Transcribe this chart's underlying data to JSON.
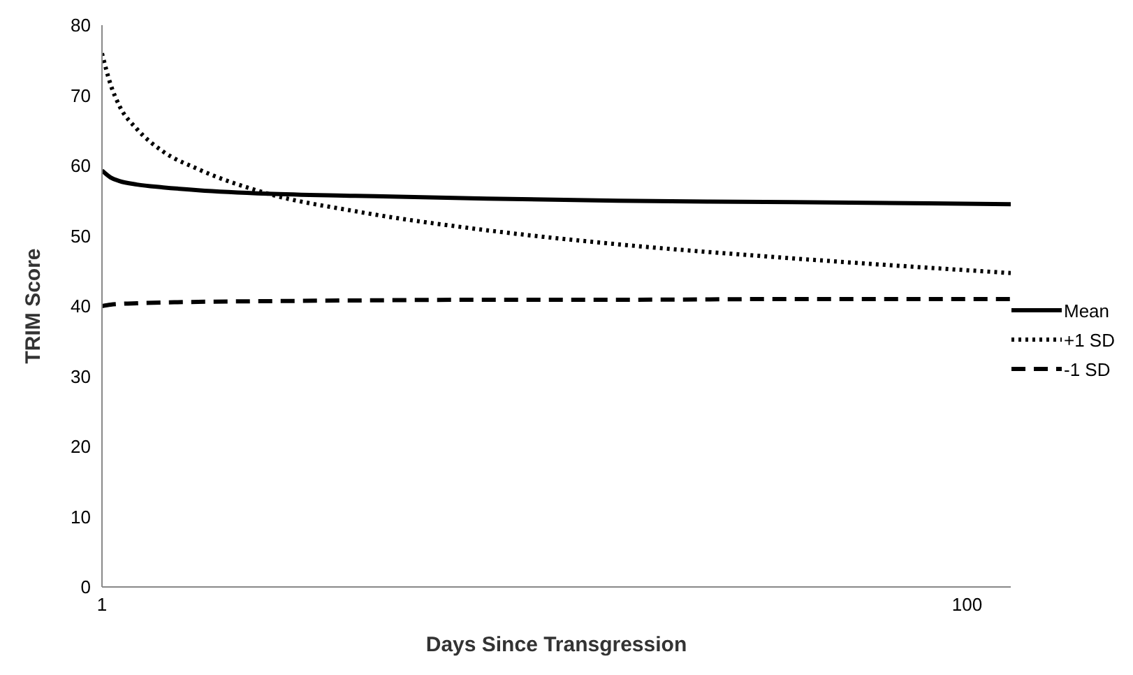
{
  "chart_data": {
    "type": "line",
    "xlabel": "Days Since Transgression",
    "ylabel": "TRIM Score",
    "x": [
      1,
      2,
      3,
      5,
      8,
      12,
      20,
      30,
      45,
      60,
      80,
      105
    ],
    "xlim": [
      1,
      105
    ],
    "xticks": [
      1,
      100
    ],
    "ylim": [
      0,
      80
    ],
    "yticks": [
      0,
      10,
      20,
      30,
      40,
      50,
      60,
      70,
      80
    ],
    "grid": false,
    "legend": "right",
    "marker": "none",
    "series": [
      {
        "name": "Mean",
        "color": "#000000",
        "line_style": "solid",
        "values": [
          59.3,
          58.3,
          57.8,
          57.3,
          56.9,
          56.5,
          56.0,
          55.7,
          55.3,
          55.0,
          54.8,
          54.5
        ]
      },
      {
        "name": "+1 SD",
        "color": "#000000",
        "line_style": "dotted",
        "values": [
          76,
          71.5,
          68.5,
          65.2,
          62,
          59.5,
          56,
          53.5,
          50.8,
          48.8,
          46.8,
          44.7
        ]
      },
      {
        "name": "-1 SD",
        "color": "#000000",
        "line_style": "dashed",
        "values": [
          40,
          40.2,
          40.3,
          40.4,
          40.5,
          40.6,
          40.7,
          40.8,
          40.9,
          40.9,
          41,
          41
        ]
      }
    ]
  }
}
